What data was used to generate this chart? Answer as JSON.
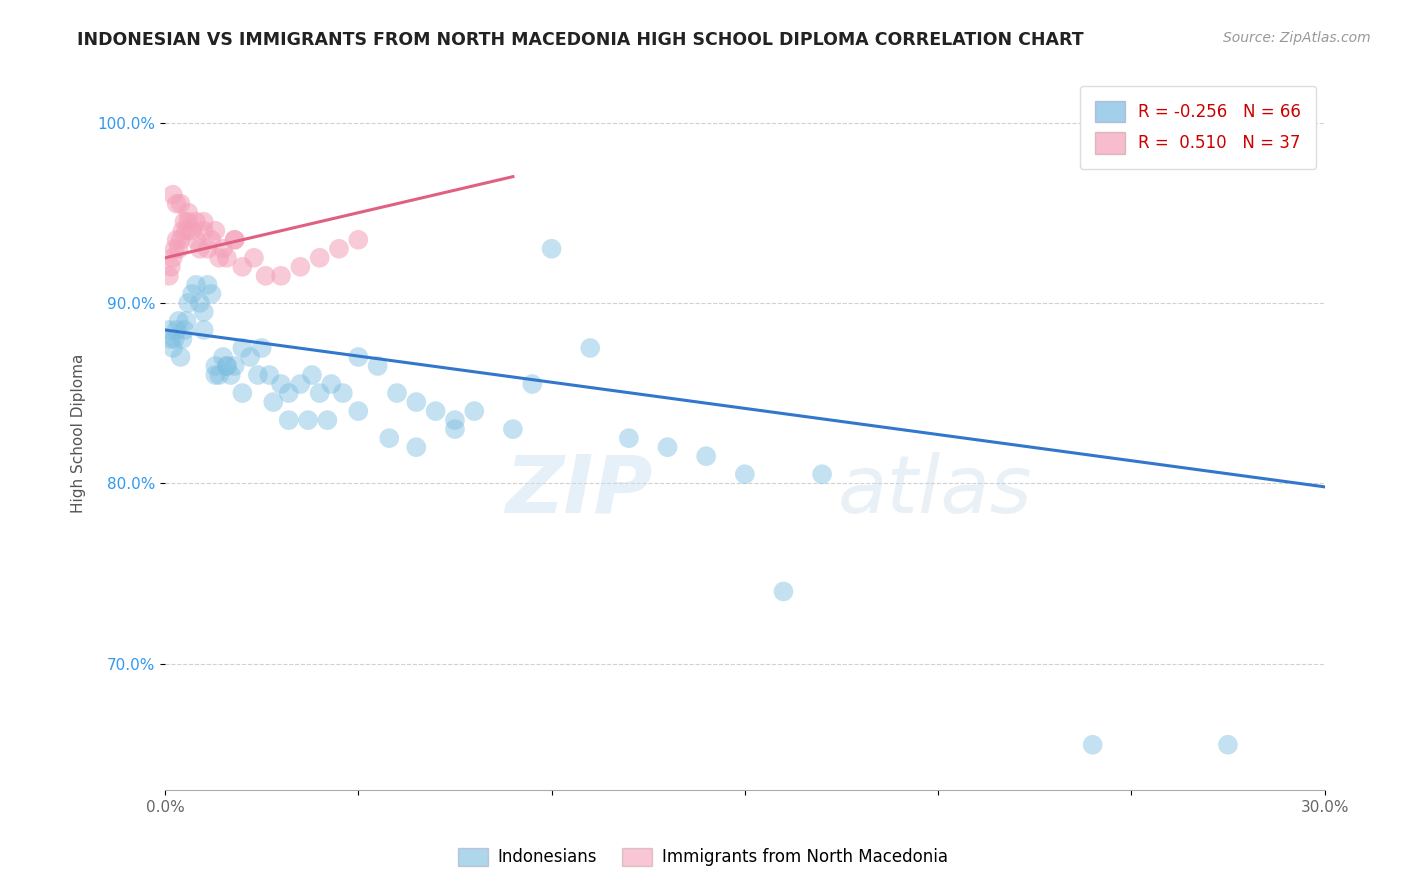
{
  "title": "INDONESIAN VS IMMIGRANTS FROM NORTH MACEDONIA HIGH SCHOOL DIPLOMA CORRELATION CHART",
  "source": "Source: ZipAtlas.com",
  "ylabel": "High School Diploma",
  "legend_label1": "Indonesians",
  "legend_label2": "Immigrants from North Macedonia",
  "R1": -0.256,
  "N1": 66,
  "R2": 0.51,
  "N2": 37,
  "blue_color": "#7bbde0",
  "pink_color": "#f4a0b8",
  "blue_line_color": "#3377cc",
  "pink_line_color": "#e06080",
  "watermark_zip": "ZIP",
  "watermark_atlas": "atlas",
  "blue_scatter_x": [
    0.1,
    0.15,
    0.2,
    0.25,
    0.3,
    0.35,
    0.4,
    0.45,
    0.5,
    0.55,
    0.6,
    0.7,
    0.8,
    0.9,
    1.0,
    1.1,
    1.2,
    1.3,
    1.4,
    1.5,
    1.6,
    1.7,
    1.8,
    2.0,
    2.2,
    2.5,
    2.7,
    3.0,
    3.2,
    3.5,
    3.8,
    4.0,
    4.3,
    4.6,
    5.0,
    5.5,
    6.0,
    6.5,
    7.0,
    7.5,
    8.0,
    9.0,
    10.0,
    11.0,
    12.0,
    13.0,
    14.0,
    15.0,
    16.0,
    17.0,
    1.0,
    1.3,
    1.6,
    2.0,
    2.4,
    2.8,
    3.2,
    3.7,
    4.2,
    5.0,
    5.8,
    6.5,
    7.5,
    9.5,
    24.0,
    27.5
  ],
  "blue_scatter_y": [
    88.5,
    88.0,
    87.5,
    88.0,
    88.5,
    89.0,
    87.0,
    88.0,
    88.5,
    89.0,
    90.0,
    90.5,
    91.0,
    90.0,
    89.5,
    91.0,
    90.5,
    86.5,
    86.0,
    87.0,
    86.5,
    86.0,
    86.5,
    87.5,
    87.0,
    87.5,
    86.0,
    85.5,
    85.0,
    85.5,
    86.0,
    85.0,
    85.5,
    85.0,
    87.0,
    86.5,
    85.0,
    84.5,
    84.0,
    83.5,
    84.0,
    83.0,
    93.0,
    87.5,
    82.5,
    82.0,
    81.5,
    80.5,
    74.0,
    80.5,
    88.5,
    86.0,
    86.5,
    85.0,
    86.0,
    84.5,
    83.5,
    83.5,
    83.5,
    84.0,
    82.5,
    82.0,
    83.0,
    85.5,
    65.5,
    65.5
  ],
  "pink_scatter_x": [
    0.1,
    0.15,
    0.2,
    0.25,
    0.3,
    0.35,
    0.4,
    0.45,
    0.5,
    0.55,
    0.6,
    0.7,
    0.8,
    0.9,
    1.0,
    1.1,
    1.2,
    1.4,
    1.5,
    1.6,
    1.8,
    2.0,
    2.3,
    2.6,
    3.0,
    3.5,
    4.0,
    4.5,
    5.0,
    0.2,
    0.3,
    0.4,
    0.6,
    0.8,
    1.0,
    1.3,
    1.8
  ],
  "pink_scatter_y": [
    91.5,
    92.0,
    92.5,
    93.0,
    93.5,
    93.0,
    93.5,
    94.0,
    94.5,
    94.0,
    94.5,
    94.0,
    93.5,
    93.0,
    94.5,
    93.0,
    93.5,
    92.5,
    93.0,
    92.5,
    93.5,
    92.0,
    92.5,
    91.5,
    91.5,
    92.0,
    92.5,
    93.0,
    93.5,
    96.0,
    95.5,
    95.5,
    95.0,
    94.5,
    94.0,
    94.0,
    93.5
  ],
  "blue_line_x0": 0.0,
  "blue_line_x1": 30.0,
  "blue_line_y0": 88.5,
  "blue_line_y1": 79.8,
  "pink_line_x0": 0.0,
  "pink_line_x1": 9.0,
  "pink_line_y0": 92.5,
  "pink_line_y1": 97.0,
  "xmin": 0.0,
  "xmax": 30.0,
  "ymin": 63.0,
  "ymax": 102.5,
  "yticks": [
    70.0,
    80.0,
    90.0,
    100.0
  ],
  "ytick_labels": [
    "70.0%",
    "80.0%",
    "90.0%",
    "100.0%"
  ],
  "xticks": [
    0.0,
    5.0,
    10.0,
    15.0,
    20.0,
    25.0,
    30.0
  ],
  "xtick_labels": [
    "0.0%",
    "",
    "",
    "",
    "",
    "",
    "30.0%"
  ]
}
